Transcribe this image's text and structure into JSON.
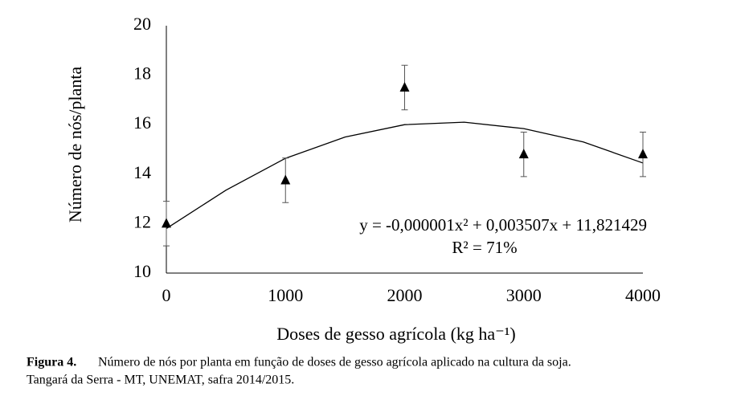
{
  "chart_data": {
    "type": "scatter",
    "x_label": "Doses de gesso agrícola (kg ha⁻¹)",
    "y_label": "Número de nós/planta",
    "xlim": [
      0,
      4000
    ],
    "ylim": [
      10,
      20
    ],
    "xticks": [
      0,
      1000,
      2000,
      3000,
      4000
    ],
    "yticks": [
      10,
      12,
      14,
      16,
      18,
      20
    ],
    "series": [
      {
        "color": "#000000",
        "x": [
          0,
          1000,
          2000,
          3000,
          4000
        ],
        "values": [
          12.0,
          13.75,
          17.5,
          14.8,
          14.8
        ],
        "errors": [
          0.9,
          0.9,
          0.9,
          0.9,
          0.9
        ]
      }
    ],
    "fit": {
      "color": "#000000",
      "x": [
        0,
        500,
        1000,
        1500,
        2000,
        2500,
        3000,
        3500,
        4000
      ],
      "values": [
        11.8,
        13.35,
        14.64,
        15.5,
        16.0,
        16.1,
        15.84,
        15.3,
        14.45
      ]
    },
    "annotations": [
      "y = -0,000001x² + 0,003507x + 11,821429",
      "R² = 71%"
    ],
    "caption": {
      "label": "Figura 4.",
      "line1": "Número de nós por planta em função de doses de gesso agrícola aplicado na cultura da soja.",
      "line2": "Tangará da Serra - MT, UNEMAT, safra 2014/2015."
    }
  }
}
